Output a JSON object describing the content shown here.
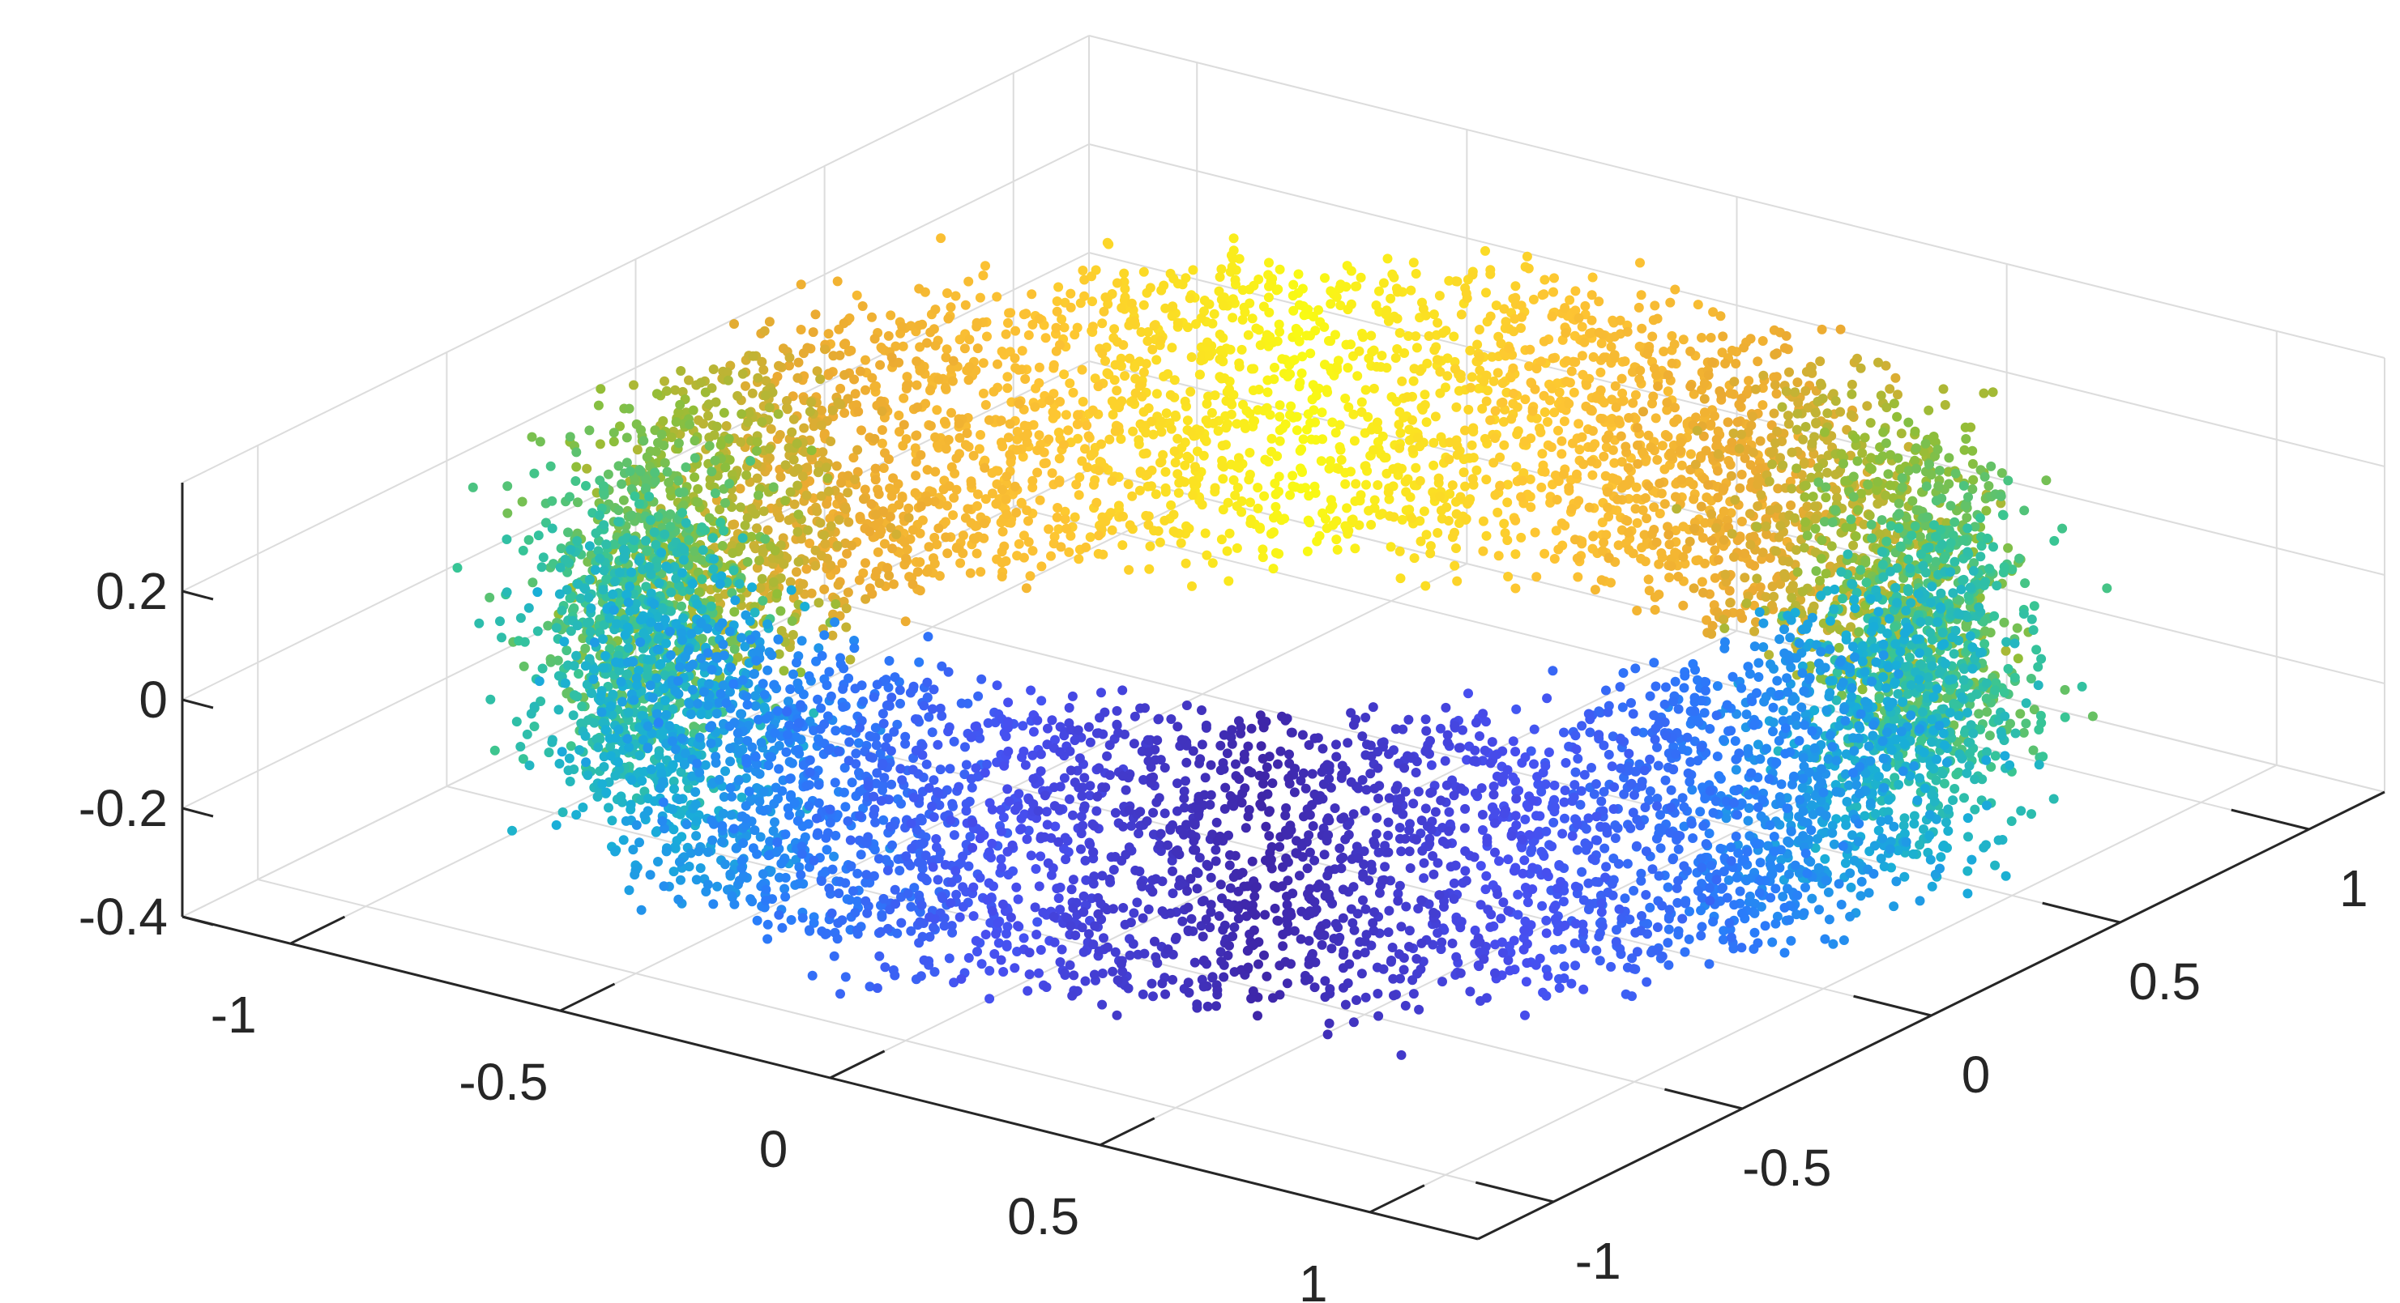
{
  "chart_data": {
    "type": "scatter",
    "dimensions": 3,
    "title": "",
    "xlabel": "",
    "ylabel": "",
    "zlabel": "",
    "xlim": [
      -1.2,
      1.2
    ],
    "ylim": [
      -1.2,
      1.2
    ],
    "zlim": [
      -0.4,
      0.4
    ],
    "x_ticks": [
      -1,
      -0.5,
      0,
      0.5,
      1
    ],
    "y_ticks": [
      -1,
      -0.5,
      0,
      0.5,
      1
    ],
    "z_ticks": [
      -0.4,
      -0.2,
      0,
      0.2
    ],
    "x_tick_labels": [
      "-1",
      "-0.5",
      "0",
      "0.5",
      "1"
    ],
    "y_tick_labels": [
      "-1",
      "-0.5",
      "0",
      "0.5",
      "1"
    ],
    "z_tick_labels": [
      "-0.4",
      "-0.2",
      "0",
      "0.2"
    ],
    "grid": true,
    "legend": "none",
    "colormap": "parula",
    "shape": "thick ring (cylindrical band) around the z-axis",
    "ring_radius_mean": 1.0,
    "ring_radius_spread": 0.08,
    "z_range": [
      -0.25,
      0.25
    ],
    "approx_point_count": 9000,
    "color_encodes": "angle around the ring (parula colormap)",
    "colors": {
      "axis": "#262626",
      "grid": "#dcdcdc",
      "background": "#ffffff"
    }
  }
}
